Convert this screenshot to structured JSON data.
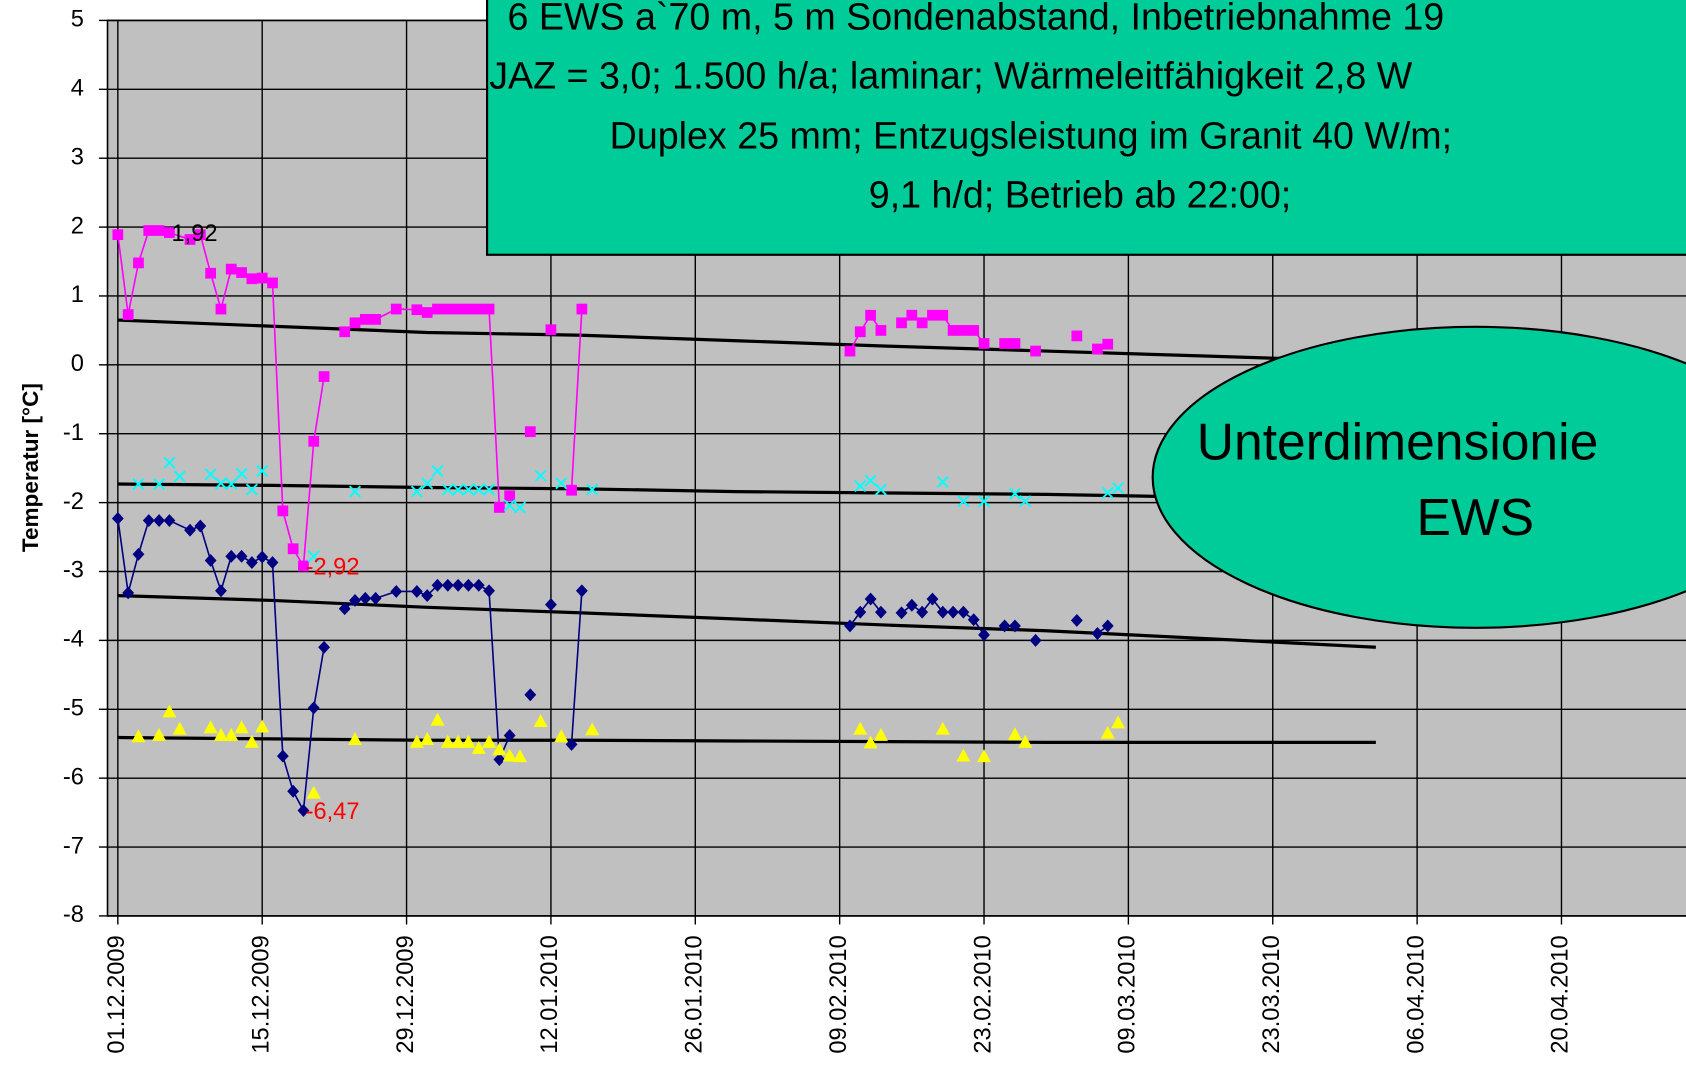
{
  "chart_data": {
    "type": "scatter",
    "y_label": "Temperatur [°C]",
    "ylim": [
      -8,
      5
    ],
    "yticks": [
      -8,
      -7,
      -6,
      -5,
      -4,
      -3,
      -2,
      -1,
      0,
      1,
      2,
      3,
      4,
      5
    ],
    "xlim": [
      "30.11.2009",
      "04.05.2010"
    ],
    "xticks": [
      "01.12.2009",
      "15.12.2009",
      "29.12.2009",
      "12.01.2010",
      "26.01.2010",
      "09.02.2010",
      "23.02.2010",
      "09.03.2010",
      "23.03.2010",
      "06.04.2010",
      "20.04.2010"
    ],
    "grid": true,
    "background": "#c0c0c0",
    "series": [
      {
        "color": "#000000",
        "marker": "none",
        "line": true,
        "x": [
          "01.12.2009",
          "16.12.2009",
          "31.12.2009",
          "15.01.2010",
          "30.01.2010",
          "14.02.2010",
          "01.03.2010",
          "16.03.2010",
          "02.04.2010"
        ],
        "values": [
          0.65,
          0.56,
          0.47,
          0.43,
          0.35,
          0.27,
          0.2,
          0.13,
          0.05
        ]
      },
      {
        "color": "#000000",
        "marker": "none",
        "line": true,
        "x": [
          "01.12.2009",
          "16.12.2009",
          "31.12.2009",
          "15.01.2010",
          "30.01.2010",
          "14.02.2010",
          "01.03.2010",
          "16.03.2010",
          "02.04.2010"
        ],
        "values": [
          -1.73,
          -1.75,
          -1.78,
          -1.8,
          -1.84,
          -1.86,
          -1.88,
          -1.92,
          -1.97
        ]
      },
      {
        "color": "#000000",
        "marker": "none",
        "line": true,
        "x": [
          "01.12.2009",
          "16.12.2009",
          "31.12.2009",
          "15.01.2010",
          "30.01.2010",
          "14.02.2010",
          "01.03.2010",
          "16.03.2010",
          "02.04.2010"
        ],
        "values": [
          -3.35,
          -3.42,
          -3.52,
          -3.6,
          -3.69,
          -3.78,
          -3.86,
          -3.97,
          -4.1
        ]
      },
      {
        "color": "#000000",
        "marker": "none",
        "line": true,
        "x": [
          "01.12.2009",
          "16.12.2009",
          "31.12.2009",
          "15.01.2010",
          "30.01.2010",
          "14.02.2010",
          "01.03.2010",
          "16.03.2010",
          "02.04.2010"
        ],
        "values": [
          -5.41,
          -5.43,
          -5.45,
          -5.45,
          -5.46,
          -5.47,
          -5.48,
          -5.48,
          -5.48
        ]
      },
      {
        "color": "#ff00ff",
        "marker": "square",
        "line": true,
        "x": [
          "01.12.2009",
          "02.12.2009",
          "03.12.2009",
          "04.12.2009",
          "05.12.2009",
          "06.12.2009",
          "08.12.2009",
          "09.12.2009",
          "10.12.2009",
          "11.12.2009",
          "12.12.2009",
          "13.12.2009",
          "14.12.2009",
          "15.12.2009",
          "16.12.2009",
          "17.12.2009",
          "18.12.2009",
          "19.12.2009",
          "20.12.2009",
          "21.12.2009",
          "22.12.2009",
          "23.12.2009",
          "24.12.2009",
          "25.12.2009",
          "26.12.2009",
          "28.12.2009",
          "30.12.2009",
          "31.12.2009",
          "01.01.2010",
          "02.01.2010",
          "03.01.2010",
          "04.01.2010",
          "05.01.2010",
          "06.01.2010",
          "07.01.2010",
          "08.01.2010",
          "09.01.2010",
          "10.01.2010",
          "11.01.2010",
          "12.01.2010",
          "13.01.2010",
          "14.01.2010",
          "15.01.2010",
          "16.01.2010",
          "10.02.2010",
          "11.02.2010",
          "12.02.2010",
          "13.02.2010",
          "14.02.2010",
          "15.02.2010",
          "16.02.2010",
          "17.02.2010",
          "18.02.2010",
          "19.02.2010",
          "20.02.2010",
          "21.02.2010",
          "22.02.2010",
          "23.02.2010",
          "24.02.2010",
          "25.02.2010",
          "26.02.2010",
          "27.02.2010",
          "28.02.2010",
          "01.03.2010",
          "04.03.2010",
          "05.03.2010",
          "06.03.2010",
          "07.03.2010"
        ],
        "values": [
          1.89,
          0.73,
          1.48,
          1.95,
          1.95,
          1.92,
          1.82,
          1.89,
          1.33,
          0.81,
          1.39,
          1.34,
          1.25,
          1.26,
          1.19,
          -2.12,
          -2.67,
          -2.92,
          -1.11,
          -0.17,
          null,
          0.48,
          0.61,
          0.66,
          0.66,
          0.81,
          0.8,
          0.76,
          0.81,
          0.81,
          0.81,
          0.81,
          0.81,
          0.81,
          -2.07,
          -1.9,
          null,
          -0.97,
          null,
          0.51,
          null,
          -1.82,
          0.81,
          null,
          0.2,
          0.48,
          0.72,
          0.5,
          null,
          0.61,
          0.72,
          0.61,
          0.72,
          0.72,
          0.5,
          0.5,
          0.5,
          0.31,
          null,
          0.31,
          0.31,
          null,
          0.2,
          null,
          0.42,
          null,
          0.23,
          0.3
        ]
      },
      {
        "color": "#000080",
        "marker": "diamond",
        "line": true,
        "x": [
          "01.12.2009",
          "02.12.2009",
          "03.12.2009",
          "04.12.2009",
          "05.12.2009",
          "06.12.2009",
          "08.12.2009",
          "09.12.2009",
          "10.12.2009",
          "11.12.2009",
          "12.12.2009",
          "13.12.2009",
          "14.12.2009",
          "15.12.2009",
          "16.12.2009",
          "17.12.2009",
          "18.12.2009",
          "19.12.2009",
          "20.12.2009",
          "21.12.2009",
          "22.12.2009",
          "23.12.2009",
          "24.12.2009",
          "25.12.2009",
          "26.12.2009",
          "28.12.2009",
          "30.12.2009",
          "31.12.2009",
          "01.01.2010",
          "02.01.2010",
          "03.01.2010",
          "04.01.2010",
          "05.01.2010",
          "06.01.2010",
          "07.01.2010",
          "08.01.2010",
          "09.01.2010",
          "10.01.2010",
          "11.01.2010",
          "12.01.2010",
          "13.01.2010",
          "14.01.2010",
          "15.01.2010",
          "16.01.2010",
          "10.02.2010",
          "11.02.2010",
          "12.02.2010",
          "13.02.2010",
          "14.02.2010",
          "15.02.2010",
          "16.02.2010",
          "17.02.2010",
          "18.02.2010",
          "19.02.2010",
          "20.02.2010",
          "21.02.2010",
          "22.02.2010",
          "23.02.2010",
          "24.02.2010",
          "25.02.2010",
          "26.02.2010",
          "27.02.2010",
          "28.02.2010",
          "01.03.2010",
          "04.03.2010",
          "05.03.2010",
          "06.03.2010",
          "07.03.2010"
        ],
        "values": [
          -2.23,
          -3.31,
          -2.75,
          -2.26,
          -2.26,
          -2.26,
          -2.4,
          -2.34,
          -2.84,
          -3.28,
          -2.78,
          -2.78,
          -2.87,
          -2.79,
          -2.87,
          -5.68,
          -6.19,
          -6.47,
          -4.98,
          -4.1,
          null,
          -3.54,
          -3.42,
          -3.39,
          -3.39,
          -3.29,
          -3.29,
          -3.35,
          -3.2,
          -3.2,
          -3.2,
          -3.2,
          -3.2,
          -3.28,
          -5.73,
          -5.38,
          null,
          -4.79,
          null,
          -3.48,
          null,
          -5.51,
          -3.28,
          null,
          -3.79,
          -3.59,
          -3.4,
          -3.59,
          null,
          -3.6,
          -3.49,
          -3.59,
          -3.4,
          -3.59,
          -3.59,
          -3.59,
          -3.7,
          -3.92,
          null,
          -3.79,
          -3.79,
          null,
          -4.0,
          null,
          -3.71,
          null,
          -3.9,
          -3.79
        ]
      },
      {
        "color": "#00ffff",
        "marker": "x",
        "line": false,
        "x": [
          "03.12.2009",
          "05.12.2009",
          "06.12.2009",
          "07.12.2009",
          "10.12.2009",
          "11.12.2009",
          "12.12.2009",
          "13.12.2009",
          "14.12.2009",
          "15.12.2009",
          "20.12.2009",
          "24.12.2009",
          "30.12.2009",
          "31.12.2009",
          "01.01.2010",
          "02.01.2010",
          "03.01.2010",
          "04.01.2010",
          "05.01.2010",
          "06.01.2010",
          "08.01.2010",
          "09.01.2010",
          "11.01.2010",
          "13.01.2010",
          "16.01.2010",
          "11.02.2010",
          "12.02.2010",
          "13.02.2010",
          "19.02.2010",
          "21.02.2010",
          "23.02.2010",
          "26.02.2010",
          "27.02.2010",
          "07.03.2010",
          "08.03.2010"
        ],
        "values": [
          -1.73,
          -1.73,
          -1.42,
          -1.62,
          -1.59,
          -1.72,
          -1.73,
          -1.58,
          -1.81,
          -1.54,
          -2.78,
          -1.84,
          -1.84,
          -1.72,
          -1.54,
          -1.81,
          -1.81,
          -1.81,
          -1.81,
          -1.81,
          -2.04,
          -2.07,
          -1.61,
          -1.72,
          -1.81,
          -1.76,
          -1.68,
          -1.81,
          -1.7,
          -1.98,
          -1.98,
          -1.87,
          -1.98,
          -1.86,
          -1.79
        ]
      },
      {
        "color": "#ffff00",
        "marker": "triangle",
        "line": false,
        "x": [
          "03.12.2009",
          "05.12.2009",
          "06.12.2009",
          "07.12.2009",
          "10.12.2009",
          "11.12.2009",
          "12.12.2009",
          "13.12.2009",
          "14.12.2009",
          "15.12.2009",
          "20.12.2009",
          "24.12.2009",
          "30.12.2009",
          "31.12.2009",
          "01.01.2010",
          "02.01.2010",
          "03.01.2010",
          "04.01.2010",
          "05.01.2010",
          "06.01.2010",
          "07.01.2010",
          "08.01.2010",
          "09.01.2010",
          "11.01.2010",
          "13.01.2010",
          "16.01.2010",
          "11.02.2010",
          "12.02.2010",
          "13.02.2010",
          "19.02.2010",
          "21.02.2010",
          "23.02.2010",
          "26.02.2010",
          "27.02.2010",
          "07.03.2010",
          "08.03.2010"
        ],
        "values": [
          -5.4,
          -5.38,
          -5.04,
          -5.29,
          -5.27,
          -5.38,
          -5.38,
          -5.27,
          -5.48,
          -5.26,
          -6.22,
          -5.44,
          -5.48,
          -5.44,
          -5.16,
          -5.48,
          -5.48,
          -5.48,
          -5.57,
          -5.48,
          -5.59,
          -5.68,
          -5.69,
          -5.18,
          -5.4,
          -5.3,
          -5.29,
          -5.49,
          -5.38,
          -5.29,
          -5.68,
          -5.69,
          -5.37,
          -5.48,
          -5.35,
          -5.2
        ]
      }
    ],
    "annotations": [
      {
        "text": "1,92",
        "x": "06.12.2009",
        "y": 1.92,
        "color": "#000000"
      },
      {
        "text": "-2,92",
        "x": "19.12.2009",
        "y": -2.92,
        "color": "#ff0000"
      },
      {
        "text": "-6,47",
        "x": "19.12.2009",
        "y": -6.47,
        "color": "#ff0000"
      }
    ],
    "textbox": {
      "color": "#00cc99",
      "lines": [
        "6 EWS a`70 m, 5 m Sondenabstand, Inbetriebnahme 19",
        "JAZ = 3,0; 1.500 h/a; laminar; Wärmeleitfähigkeit 2,8 W",
        "Duplex 25 mm; Entzugsleistung im Granit 40 W/m;",
        "9,1 h/d; Betrieb ab 22:00;"
      ]
    },
    "callout": {
      "color": "#00cc99",
      "lines": [
        "Unterdimensionie",
        "EWS"
      ]
    }
  }
}
